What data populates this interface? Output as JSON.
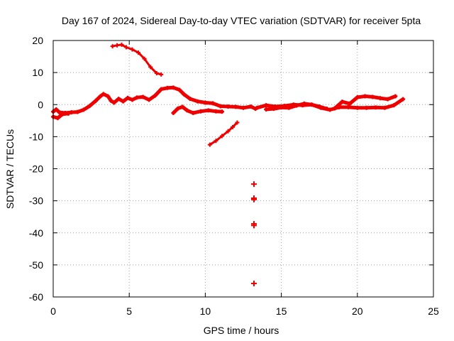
{
  "chart_data": {
    "type": "scatter",
    "title": "Day 167 of 2024, Sidereal Day-to-day VTEC variation (SDTVAR) for receiver 5pta",
    "xlabel": "GPS time / hours",
    "ylabel": "SDTVAR / TECUs",
    "xlim": [
      0,
      25
    ],
    "ylim": [
      -60,
      20
    ],
    "xticks": [
      "0",
      "5",
      "10",
      "15",
      "20",
      "25"
    ],
    "yticks": [
      "20",
      "10",
      "0",
      "-10",
      "-20",
      "-30",
      "-40",
      "-50",
      "-60"
    ],
    "grid": true,
    "marker": "plus",
    "color": "#ee0000",
    "series": [
      {
        "name": "arc-high",
        "points": [
          [
            3.9,
            18.2
          ],
          [
            4.2,
            18.5
          ],
          [
            4.5,
            18.7
          ],
          [
            4.8,
            17.9
          ],
          [
            5.2,
            17.2
          ],
          [
            5.6,
            16.2
          ],
          [
            6.0,
            14.3
          ],
          [
            6.4,
            11.7
          ],
          [
            6.8,
            9.8
          ],
          [
            7.1,
            9.4
          ]
        ]
      },
      {
        "name": "arc-main",
        "points": [
          [
            0,
            -2.2
          ],
          [
            0.2,
            -1.5
          ],
          [
            0.4,
            -2.4
          ],
          [
            0.8,
            -2.6
          ],
          [
            1.2,
            -2.4
          ],
          [
            1.6,
            -2.3
          ],
          [
            2.0,
            -1.6
          ],
          [
            2.4,
            -0.4
          ],
          [
            2.8,
            1.2
          ],
          [
            3.1,
            2.6
          ],
          [
            3.3,
            3.3
          ],
          [
            3.6,
            2.6
          ],
          [
            3.8,
            1.2
          ],
          [
            4.0,
            0.6
          ],
          [
            4.3,
            1.8
          ],
          [
            4.6,
            1.0
          ],
          [
            4.9,
            2.1
          ],
          [
            5.2,
            1.5
          ],
          [
            5.5,
            2.2
          ],
          [
            5.9,
            2.4
          ],
          [
            6.3,
            1.5
          ],
          [
            6.7,
            2.8
          ],
          [
            7.1,
            4.8
          ],
          [
            7.5,
            5.2
          ],
          [
            7.9,
            5.3
          ],
          [
            8.3,
            4.6
          ],
          [
            8.6,
            3.2
          ],
          [
            9.0,
            1.8
          ],
          [
            9.5,
            1.0
          ],
          [
            10.0,
            0.6
          ],
          [
            10.5,
            0.4
          ],
          [
            11.0,
            -0.5
          ],
          [
            11.5,
            -0.6
          ],
          [
            12.0,
            -0.7
          ],
          [
            12.5,
            -1.0
          ],
          [
            13.0,
            -0.6
          ],
          [
            13.3,
            -1.3
          ]
        ]
      },
      {
        "name": "arc-low",
        "points": [
          [
            0,
            -3.8
          ],
          [
            0.3,
            -4.2
          ],
          [
            0.6,
            -3.0
          ],
          [
            1.0,
            -2.8
          ]
        ]
      },
      {
        "name": "arc-dip",
        "points": [
          [
            7.9,
            -2.6
          ],
          [
            8.2,
            -1.2
          ],
          [
            8.5,
            -0.7
          ],
          [
            8.8,
            -1.8
          ],
          [
            9.2,
            -2.6
          ],
          [
            9.7,
            -2.1
          ],
          [
            10.2,
            -1.8
          ],
          [
            10.7,
            -2.1
          ],
          [
            11.1,
            -2.2
          ]
        ]
      },
      {
        "name": "arc-rising",
        "points": [
          [
            10.3,
            -12.5
          ],
          [
            10.7,
            -11.3
          ],
          [
            11.1,
            -9.8
          ],
          [
            11.5,
            -8.3
          ],
          [
            11.8,
            -7.0
          ],
          [
            12.1,
            -5.6
          ]
        ]
      },
      {
        "name": "arc-tail-a",
        "points": [
          [
            13.4,
            -1.0
          ],
          [
            14.0,
            -0.2
          ],
          [
            14.6,
            -0.6
          ],
          [
            15.2,
            -0.4
          ],
          [
            15.8,
            0.0
          ],
          [
            16.4,
            -0.2
          ],
          [
            17.0,
            0.0
          ],
          [
            17.6,
            -1.0
          ],
          [
            18.2,
            -1.6
          ],
          [
            18.8,
            -0.8
          ],
          [
            19.4,
            -0.8
          ],
          [
            20.0,
            -1.0
          ],
          [
            20.6,
            -1.0
          ],
          [
            21.2,
            -0.9
          ],
          [
            21.8,
            -1.0
          ],
          [
            22.4,
            -0.2
          ],
          [
            23.0,
            1.7
          ]
        ]
      },
      {
        "name": "arc-tail-b",
        "points": [
          [
            18.5,
            -1.2
          ],
          [
            19.0,
            0.9
          ],
          [
            19.5,
            0.3
          ],
          [
            20.0,
            2.3
          ],
          [
            20.5,
            2.6
          ],
          [
            21.0,
            2.4
          ],
          [
            21.5,
            2.0
          ],
          [
            22.0,
            1.7
          ],
          [
            22.5,
            2.6
          ]
        ]
      },
      {
        "name": "arc-tail-c",
        "points": [
          [
            14.0,
            -1.5
          ],
          [
            14.5,
            -1.3
          ],
          [
            15.0,
            -0.9
          ],
          [
            15.5,
            -1.0
          ],
          [
            16.0,
            -0.3
          ],
          [
            16.5,
            0.3
          ],
          [
            17.0,
            0.0
          ],
          [
            17.5,
            -0.6
          ],
          [
            18.0,
            -1.3
          ]
        ]
      },
      {
        "name": "isolated-points",
        "points": [
          [
            13.2,
            -24.8
          ],
          [
            13.2,
            -29.2
          ],
          [
            13.2,
            -29.6
          ],
          [
            13.2,
            -37.2
          ],
          [
            13.2,
            -37.7
          ],
          [
            13.2,
            -55.8
          ]
        ]
      }
    ]
  }
}
